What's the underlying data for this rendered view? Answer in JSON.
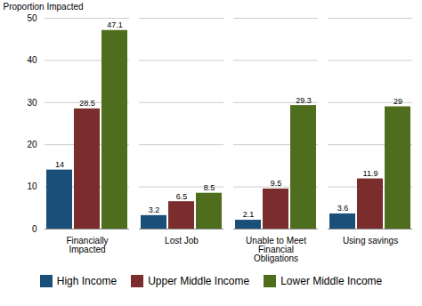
{
  "chart_data": {
    "type": "bar",
    "categories": [
      "Financially Impacted",
      "Lost Job",
      "Unable to Meet Financial Obligations",
      "Using savings"
    ],
    "series": [
      {
        "name": "High Income",
        "color": "#1a4f7a",
        "values": [
          14,
          3.2,
          2.1,
          3.6
        ]
      },
      {
        "name": "Upper Middle Income",
        "color": "#7b2d2d",
        "values": [
          28.5,
          6.5,
          9.5,
          11.9
        ]
      },
      {
        "name": "Lower Middle Income",
        "color": "#4e6e1e",
        "values": [
          47.1,
          8.5,
          29.3,
          29
        ]
      }
    ],
    "ylabel": "Proportion Impacted",
    "ylim": [
      0,
      50
    ],
    "yticks": [
      0,
      10,
      20,
      30,
      40,
      50
    ],
    "grid": true,
    "legend": "bottom",
    "data_labels": true
  }
}
